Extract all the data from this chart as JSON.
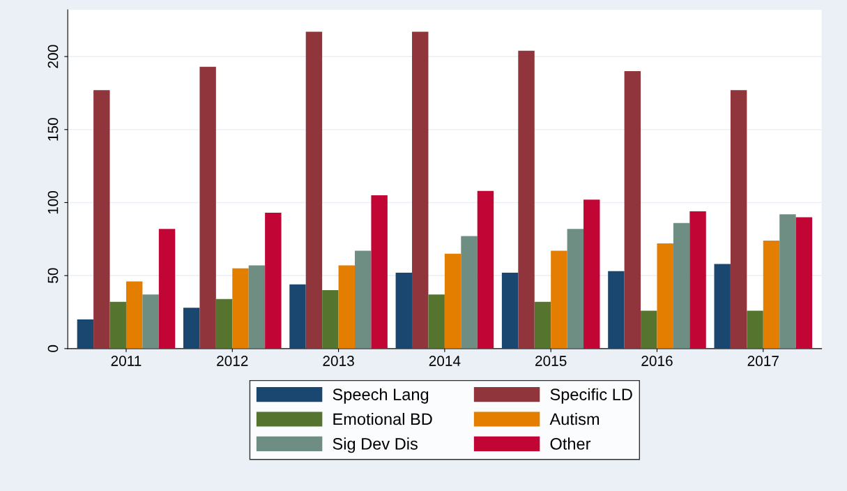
{
  "chart_data": {
    "type": "bar",
    "categories": [
      "2011",
      "2012",
      "2013",
      "2014",
      "2015",
      "2016",
      "2017"
    ],
    "series": [
      {
        "name": "Speech Lang",
        "color": "#1a476f",
        "values": [
          20,
          28,
          44,
          52,
          52,
          53,
          58
        ]
      },
      {
        "name": "Specific LD",
        "color": "#90353b",
        "values": [
          177,
          193,
          217,
          217,
          204,
          190,
          177
        ]
      },
      {
        "name": "Emotional BD",
        "color": "#55752f",
        "values": [
          32,
          34,
          40,
          37,
          32,
          26,
          26
        ]
      },
      {
        "name": "Autism",
        "color": "#e37e00",
        "values": [
          46,
          55,
          57,
          65,
          67,
          72,
          74
        ]
      },
      {
        "name": "Sig Dev Dis",
        "color": "#6e8e84",
        "values": [
          37,
          57,
          67,
          77,
          82,
          86,
          92
        ]
      },
      {
        "name": "Other",
        "color": "#c10534",
        "values": [
          82,
          93,
          105,
          108,
          102,
          94,
          90
        ]
      }
    ],
    "ylim": [
      0,
      232
    ],
    "yticks": [
      0,
      50,
      100,
      150,
      200
    ],
    "grid": "y",
    "legend": "bottom"
  }
}
